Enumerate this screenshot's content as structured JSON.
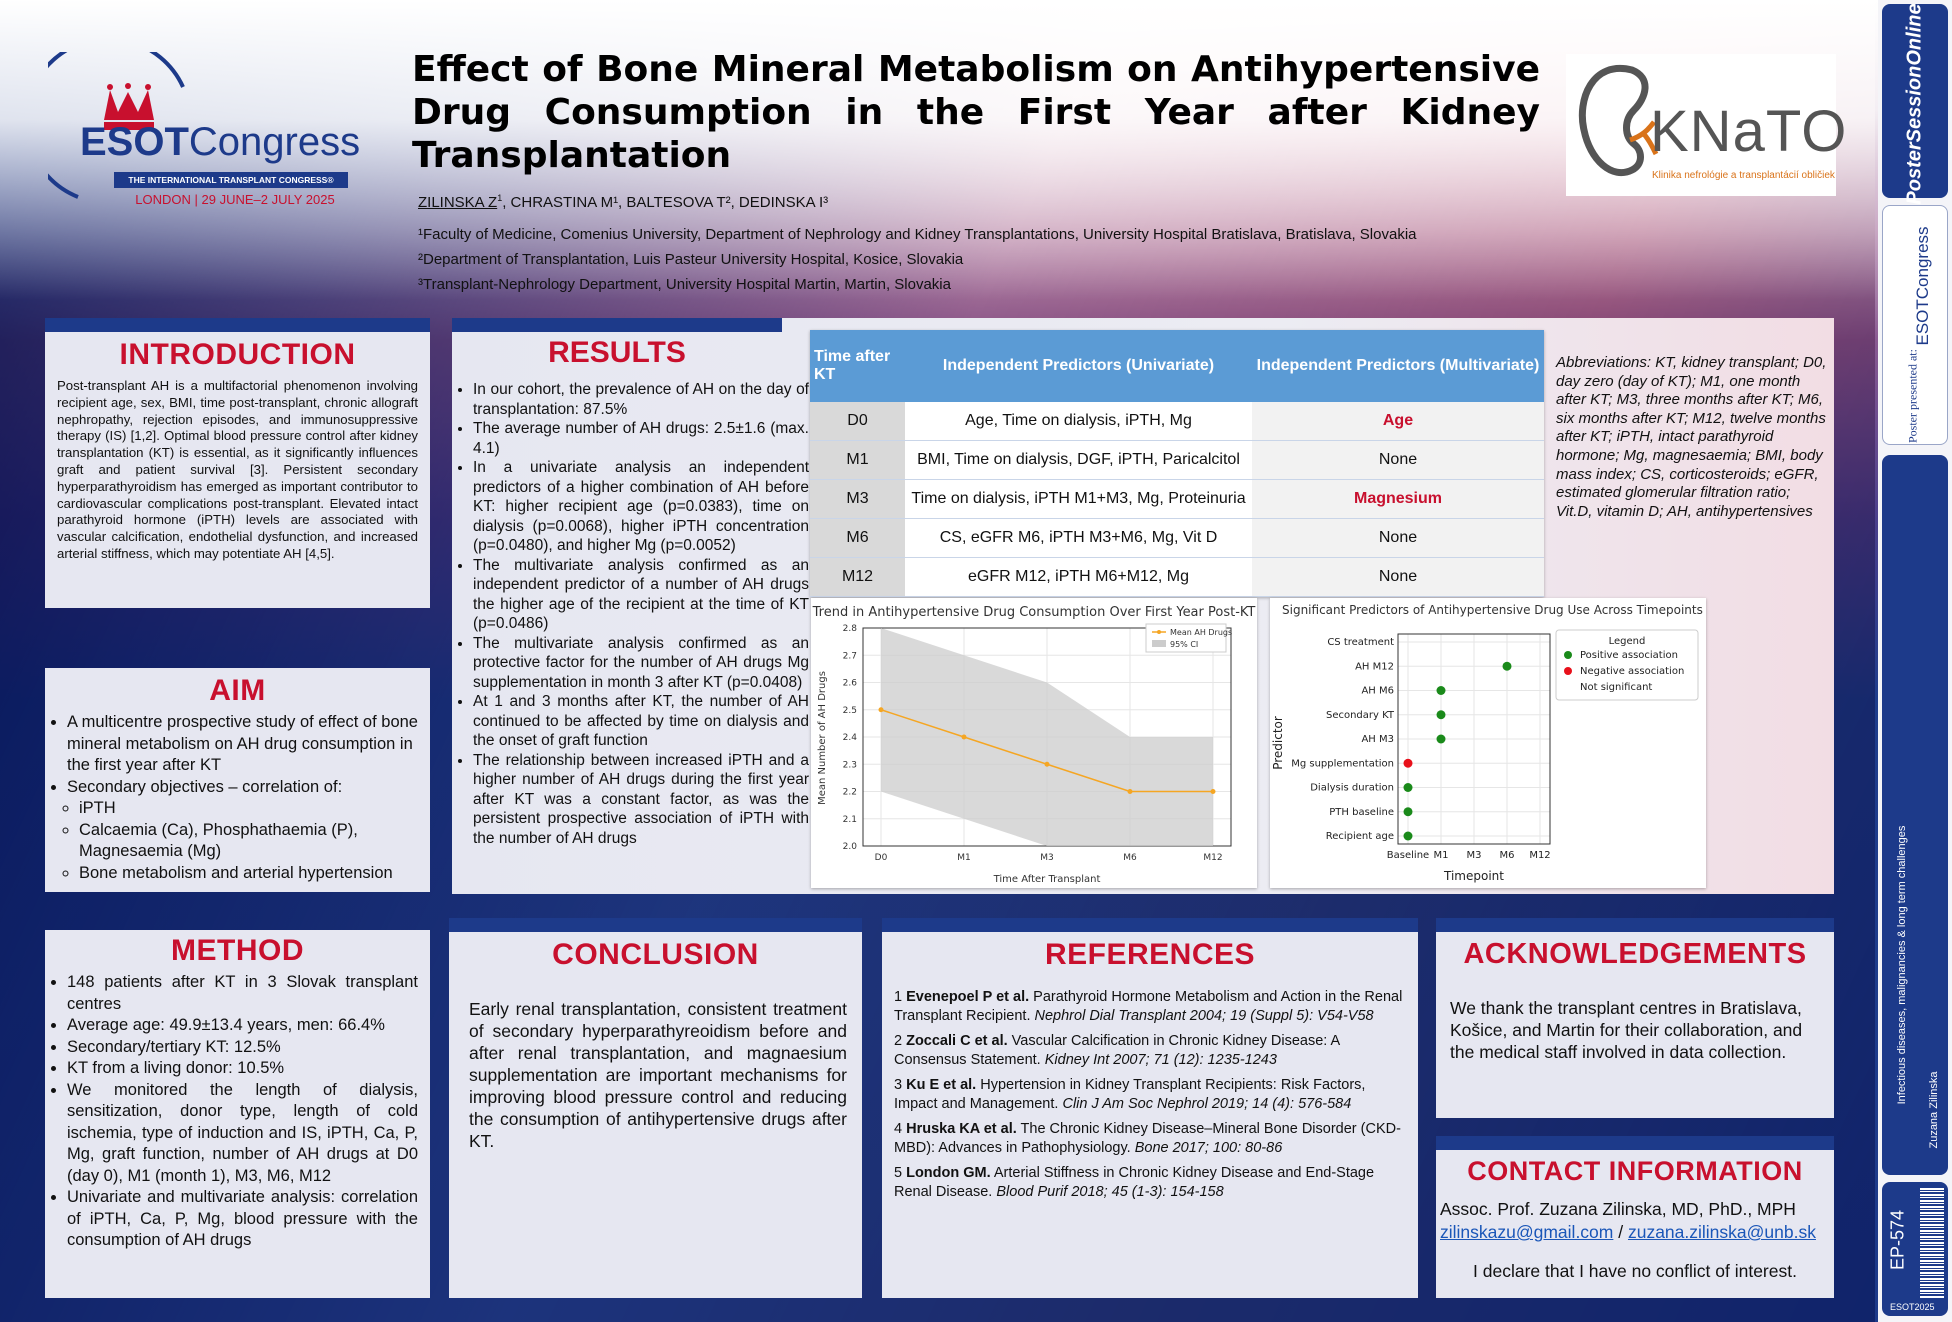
{
  "header": {
    "title": "Effect of Bone Mineral Metabolism on Antihypertensive Drug Consumption in the First Year after Kidney Transplantation",
    "title_lines": [
      "Effect of Bone Mineral Metabolism on Antihypertensive",
      "Drug Consumption in the First Year after Kidney",
      "Transplantation"
    ],
    "authors_main": "ZILINSKA Z",
    "authors_rest": ", CHRASTINA M¹, BALTESOVA T², DEDINSKA I³",
    "affiliations": [
      "¹Faculty of Medicine, Comenius University, Department of Nephrology and Kidney Transplantations, University Hospital Bratislava, Bratislava, Slovakia",
      "²Department of Transplantation, Luis Pasteur University Hospital, Kosice, Slovakia",
      "³Transplant-Nephrology Department, University Hospital Martin, Martin, Slovakia"
    ]
  },
  "esot_logo": {
    "word1": "ESOT",
    "word2": "Congress",
    "banner": "THE INTERNATIONAL TRANSPLANT CONGRESS®",
    "location": "LONDON | 29 JUNE–2 JULY 2025"
  },
  "knato_logo": {
    "name": "KNaTO",
    "subtitle": "Klinika nefrológie a transplantácií obličiek"
  },
  "introduction": {
    "title": "INTRODUCTION",
    "text": "Post-transplant AH is a multifactorial phenomenon involving recipient age, sex, BMI, time post-transplant, chronic allograft nephropathy, rejection episodes, and immunosuppressive therapy (IS) [1,2]. Optimal blood pressure control after kidney transplantation (KT) is essential, as it significantly influences graft and patient survival [3]. Persistent secondary hyperparathyroidism has emerged as important contributor to cardiovascular complications post-transplant. Elevated intact parathyroid hormone (iPTH) levels are associated with vascular calcification, endothelial dysfunction, and increased arterial stiffness, which may potentiate AH [4,5]."
  },
  "aim": {
    "title": "AIM",
    "items": [
      "A multicentre prospective study of effect of bone mineral metabolism on AH drug consumption in the first year after KT",
      "Secondary objectives – correlation of:"
    ],
    "subitems": [
      "iPTH",
      "Calcaemia (Ca), Phosphathaemia (P), Magnesaemia (Mg)",
      "Bone metabolism and arterial hypertension"
    ]
  },
  "method": {
    "title": "METHOD",
    "items": [
      "148 patients after KT in 3 Slovak transplant centres",
      "Average age: 49.9±13.4 years, men: 66.4%",
      "Secondary/tertiary KT: 12.5%",
      "KT from a living donor: 10.5%",
      "We monitored the length of dialysis, sensitization, donor type, length of cold ischemia, type of induction and IS, iPTH, Ca, P, Mg, graft function, number of AH drugs at D0 (day 0), M1 (month 1), M3, M6, M12",
      "Univariate and multivariate analysis: correlation of iPTH, Ca, P, Mg, blood pressure with the consumption of AH drugs"
    ]
  },
  "results": {
    "title": "RESULTS",
    "items": [
      "In our cohort, the prevalence of AH on the day of transplantation: 87.5%",
      "The average number of AH drugs: 2.5±1.6 (max. 4.1)",
      "In a univariate analysis an independent predictors of a higher combination of AH before KT: higher recipient age (p=0.0383), time on dialysis (p=0.0068), higher iPTH concentration (p=0.0480), and higher Mg (p=0.0052)",
      "The multivariate analysis confirmed as an independent predictor of a number of AH drugs the higher age of the recipient at the time of KT (p=0.0486)",
      "The multivariate analysis confirmed as an protective factor for the number of AH drugs Mg supplementation in month 3 after KT (p=0.0408)",
      "At 1 and 3 months after KT, the number of AH continued to be affected by time on dialysis and the onset of graft function",
      "The relationship between increased iPTH and a higher number of AH drugs during the first year after KT was a constant factor, as was the persistent prospective association of iPTH with the number of AH drugs"
    ]
  },
  "table": {
    "headers": [
      "Time after KT",
      "Independent Predictors (Univariate)",
      "Independent Predictors (Multivariate)"
    ],
    "rows": [
      {
        "time": "D0",
        "uni": "Age, Time on dialysis, iPTH, Mg",
        "multi": "Age",
        "highlight": true
      },
      {
        "time": "M1",
        "uni": "BMI, Time on dialysis, DGF, iPTH, Paricalcitol",
        "multi": "None",
        "highlight": false
      },
      {
        "time": "M3",
        "uni": "Time on dialysis, iPTH M1+M3, Mg, Proteinuria",
        "multi": "Magnesium",
        "highlight": true
      },
      {
        "time": "M6",
        "uni": "CS, eGFR M6, iPTH M3+M6, Mg, Vit D",
        "multi": "None",
        "highlight": false
      },
      {
        "time": "M12",
        "uni": "eGFR M12, iPTH M6+M12, Mg",
        "multi": "None",
        "highlight": false
      }
    ]
  },
  "abbreviations": "Abbreviations: KT, kidney transplant; D0, day zero (day of KT); M1, one month after KT; M3, three months after KT; M6, six months after KT; M12, twelve months after KT; iPTH, intact parathyroid hormone; Mg, magnesaemia; BMI, body mass index; CS, corticosteroids; eGFR, estimated glomerular filtration ratio; Vit.D, vitamin D; AH, antihypertensives",
  "chart_data": [
    {
      "type": "line",
      "title": "Trend in Antihypertensive Drug Consumption Over First Year Post-KT",
      "xlabel": "Time After Transplant",
      "ylabel": "Mean Number of AH Drugs",
      "categories": [
        "D0",
        "M1",
        "M3",
        "M6",
        "M12"
      ],
      "series": [
        {
          "name": "Mean AH Drugs",
          "values": [
            2.5,
            2.4,
            2.3,
            2.2,
            2.2
          ],
          "color": "#f5a623"
        }
      ],
      "band": {
        "name": "95% CI",
        "lower": [
          2.2,
          2.1,
          2.0,
          2.0,
          2.0
        ],
        "upper": [
          2.8,
          2.7,
          2.6,
          2.4,
          2.4
        ],
        "color": "#cccccc"
      },
      "ylim": [
        2.0,
        2.8
      ],
      "yticks": [
        "2.0",
        "2.1",
        "2.2",
        "2.3",
        "2.4",
        "2.5",
        "2.6",
        "2.7",
        "2.8"
      ],
      "grid": true,
      "legend": "top-right"
    },
    {
      "type": "scatter",
      "title": "Significant Predictors of Antihypertensive Drug Use Across Timepoints",
      "xlabel": "Timepoint",
      "ylabel": "Predictor",
      "x_categories": [
        "Baseline",
        "M1",
        "M3",
        "M6",
        "M12"
      ],
      "y_categories": [
        "Recipient age",
        "PTH baseline",
        "Dialysis duration",
        "Mg supplementation",
        "AH M3",
        "Secondary KT",
        "AH M6",
        "AH M12",
        "CS treatment"
      ],
      "points": [
        {
          "x": "Baseline",
          "y": "Recipient age",
          "effect": "positive"
        },
        {
          "x": "Baseline",
          "y": "PTH baseline",
          "effect": "positive"
        },
        {
          "x": "Baseline",
          "y": "Dialysis duration",
          "effect": "positive"
        },
        {
          "x": "Baseline",
          "y": "Mg supplementation",
          "effect": "negative"
        },
        {
          "x": "M1",
          "y": "AH M3",
          "effect": "positive"
        },
        {
          "x": "M1",
          "y": "Secondary KT",
          "effect": "positive"
        },
        {
          "x": "M1",
          "y": "AH M6",
          "effect": "positive"
        },
        {
          "x": "M6",
          "y": "AH M12",
          "effect": "positive"
        }
      ],
      "legend": {
        "title": "Legend",
        "position": "top-right",
        "entries": [
          {
            "label": "Positive association",
            "color": "#1a8a1a"
          },
          {
            "label": "Negative association",
            "color": "#e8101a"
          },
          {
            "label": "Not significant",
            "color": ""
          }
        ]
      },
      "grid": true
    }
  ],
  "conclusion": {
    "title": "CONCLUSION",
    "text": "Early renal transplantation, consistent treatment of secondary hyperparathyreoidism before and after renal transplantation, and magnaesium supplementation are important mechanisms for improving blood pressure control and reducing the consumption of antihypertensive drugs after KT."
  },
  "references": {
    "title": "REFERENCES",
    "items": [
      {
        "num": "1",
        "authors": "Evenepoel P et al.",
        "text": " Parathyroid Hormone Metabolism and Action in the Renal Transplant Recipient. ",
        "journal": "Nephrol Dial Transplant 2004; 19 (Suppl 5): V54-V58"
      },
      {
        "num": "2",
        "authors": "Zoccali C et al.",
        "text": " Vascular Calcification in Chronic Kidney Disease: A Consensus Statement. ",
        "journal": "Kidney Int 2007; 71 (12): 1235-1243"
      },
      {
        "num": "3",
        "authors": "Ku E et al.",
        "text": " Hypertension in Kidney Transplant Recipients: Risk Factors, Impact and Management. ",
        "journal": "Clin J Am Soc Nephrol 2019; 14 (4): 576-584"
      },
      {
        "num": "4",
        "authors": "Hruska KA et al.",
        "text": " The Chronic Kidney Disease–Mineral Bone Disorder (CKD-MBD): Advances in Pathophysiology. ",
        "journal": "Bone 2017; 100: 80-86"
      },
      {
        "num": "5",
        "authors": "London GM.",
        "text": " Arterial Stiffness in Chronic Kidney Disease and End-Stage Renal Disease. ",
        "journal": "Blood Purif 2018; 45 (1-3): 154-158"
      }
    ]
  },
  "acknowledgements": {
    "title": "ACKNOWLEDGEMENTS",
    "text": "We thank the transplant centres in Bratislava, Košice, and Martin for their collaboration, and the medical staff involved in data collection."
  },
  "contact": {
    "title": "CONTACT INFORMATION",
    "name": "Assoc. Prof. Zuzana Zilinska, MD, PhD., MPH",
    "email1": "zilinskazu@gmail.com",
    "separator": " / ",
    "email2": "zuzana.zilinska@unb.sk",
    "coi": "I declare that I have no conflict of interest."
  },
  "sidebar": {
    "brand": "PosterSessionOnline",
    "presented_at": "Poster presented at:",
    "congress": "ESOTCongress",
    "topic": "Infectious diseases, malignancies & long term challenges",
    "author": "Zuzana Zilinska",
    "poster_id": "EP-574",
    "footer": "ESOT2025"
  },
  "colors": {
    "accent_red": "#c8102e",
    "navy": "#1d3a8a",
    "table_header": "#5b9bd5"
  }
}
